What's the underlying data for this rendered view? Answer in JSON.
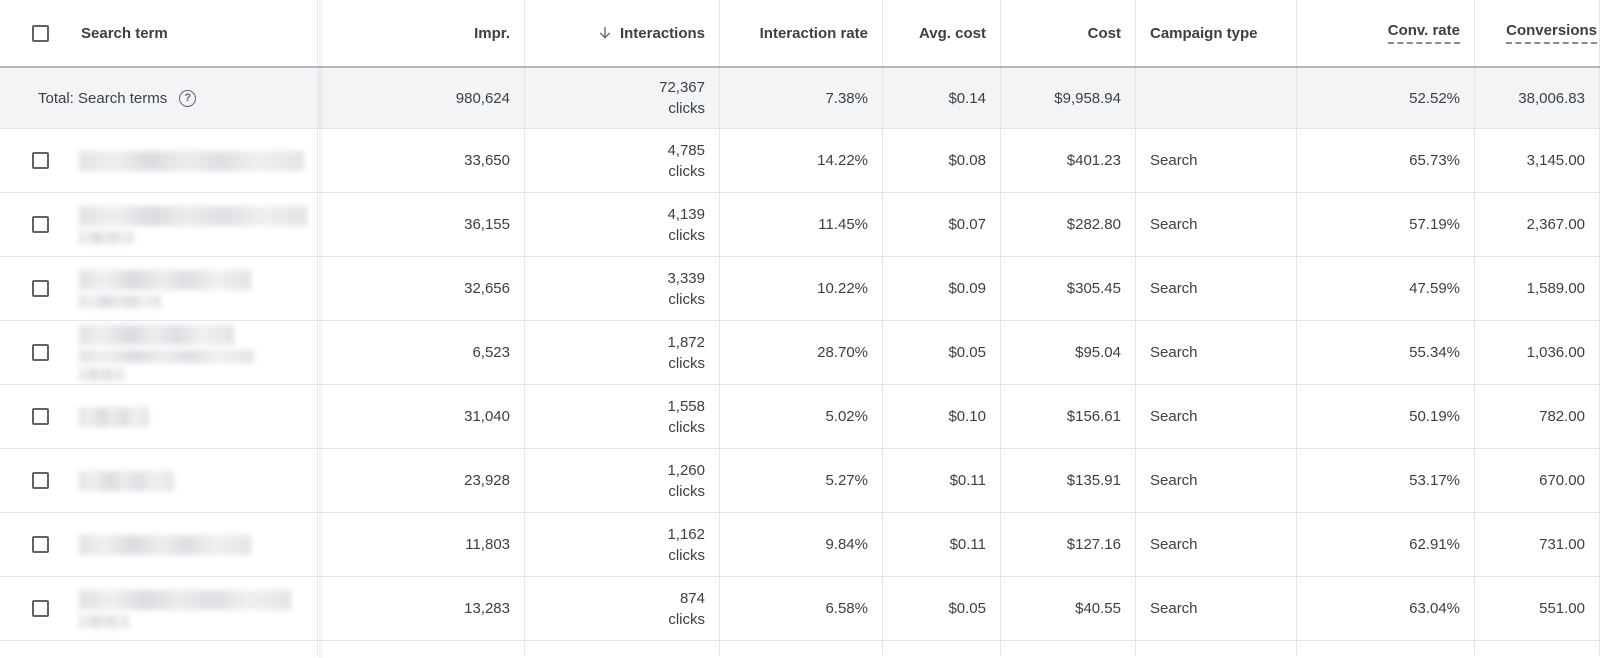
{
  "table": {
    "clicks_label": "clicks",
    "columns": [
      {
        "label": "Search term"
      },
      {
        "label": "Impr."
      },
      {
        "label": "Interactions",
        "sorted": "descending"
      },
      {
        "label": "Interaction rate"
      },
      {
        "label": "Avg. cost"
      },
      {
        "label": "Cost"
      },
      {
        "label": "Campaign type"
      },
      {
        "label": "Conv. rate"
      },
      {
        "label": "Conversions"
      }
    ],
    "total_row": {
      "label": "Total: Search terms",
      "help_icon": "?",
      "impr": "980,624",
      "interactions": "72,367",
      "interaction_rate": "7.38%",
      "avg_cost": "$0.14",
      "cost": "$9,958.94",
      "campaign_type": "",
      "conv_rate": "52.52%",
      "conversions": "38,006.83"
    },
    "rows": [
      {
        "impr": "33,650",
        "interactions": "4,785",
        "interaction_rate": "14.22%",
        "avg_cost": "$0.08",
        "cost": "$401.23",
        "campaign_type": "Search",
        "conv_rate": "65.73%",
        "conversions": "3,145.00",
        "redacted_lines": [
          225
        ]
      },
      {
        "impr": "36,155",
        "interactions": "4,139",
        "interaction_rate": "11.45%",
        "avg_cost": "$0.07",
        "cost": "$282.80",
        "campaign_type": "Search",
        "conv_rate": "57.19%",
        "conversions": "2,367.00",
        "redacted_lines": [
          228,
          55
        ]
      },
      {
        "impr": "32,656",
        "interactions": "3,339",
        "interaction_rate": "10.22%",
        "avg_cost": "$0.09",
        "cost": "$305.45",
        "campaign_type": "Search",
        "conv_rate": "47.59%",
        "conversions": "1,589.00",
        "redacted_lines": [
          172,
          82
        ]
      },
      {
        "impr": "6,523",
        "interactions": "1,872",
        "interaction_rate": "28.70%",
        "avg_cost": "$0.05",
        "cost": "$95.04",
        "campaign_type": "Search",
        "conv_rate": "55.34%",
        "conversions": "1,036.00",
        "redacted_lines": [
          155,
          175,
          45
        ]
      },
      {
        "impr": "31,040",
        "interactions": "1,558",
        "interaction_rate": "5.02%",
        "avg_cost": "$0.10",
        "cost": "$156.61",
        "campaign_type": "Search",
        "conv_rate": "50.19%",
        "conversions": "782.00",
        "redacted_lines": [
          70
        ]
      },
      {
        "impr": "23,928",
        "interactions": "1,260",
        "interaction_rate": "5.27%",
        "avg_cost": "$0.11",
        "cost": "$135.91",
        "campaign_type": "Search",
        "conv_rate": "53.17%",
        "conversions": "670.00",
        "redacted_lines": [
          95
        ]
      },
      {
        "impr": "11,803",
        "interactions": "1,162",
        "interaction_rate": "9.84%",
        "avg_cost": "$0.11",
        "cost": "$127.16",
        "campaign_type": "Search",
        "conv_rate": "62.91%",
        "conversions": "731.00",
        "redacted_lines": [
          172
        ]
      },
      {
        "impr": "13,283",
        "interactions": "874",
        "interaction_rate": "6.58%",
        "avg_cost": "$0.05",
        "cost": "$40.55",
        "campaign_type": "Search",
        "conv_rate": "63.04%",
        "conversions": "551.00",
        "redacted_lines": [
          212,
          50
        ]
      }
    ],
    "colors": {
      "total_row_background": "#f3f4f6",
      "grid_border": "#e4e5e7",
      "total_top_border": "#b4b8bc",
      "text": "#3c4043"
    }
  }
}
